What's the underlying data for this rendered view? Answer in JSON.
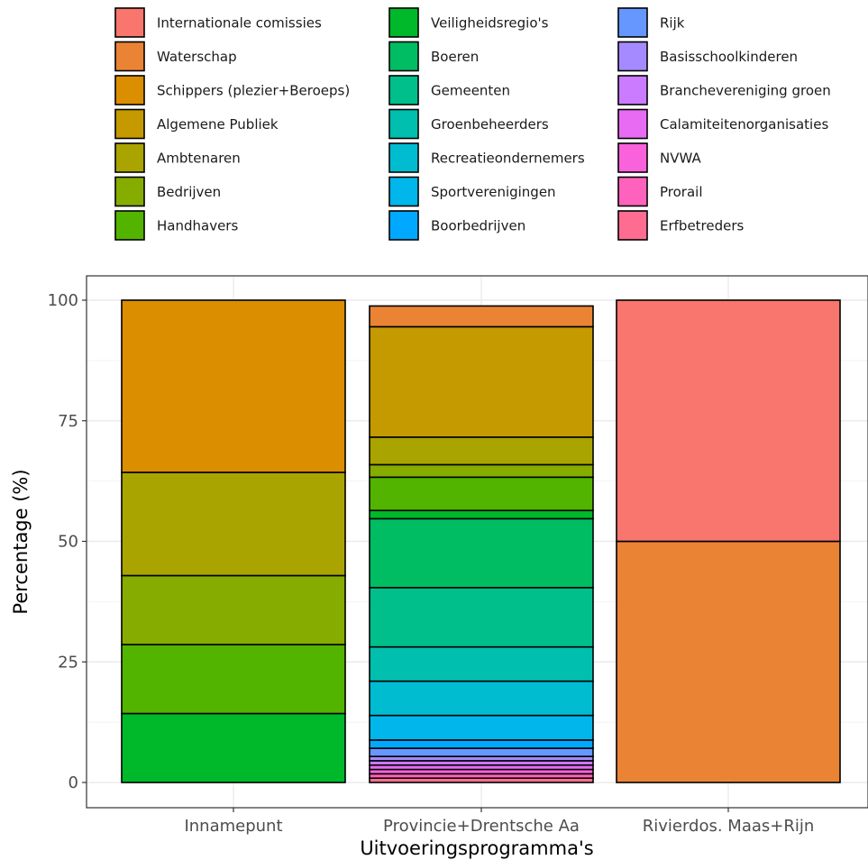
{
  "chart_data": {
    "type": "bar",
    "stacked": true,
    "xlabel": "Uitvoeringsprogramma's",
    "ylabel": "Percentage (%)",
    "ylim": [
      0,
      100
    ],
    "yticks": [
      0,
      25,
      50,
      75,
      100
    ],
    "grid": true,
    "legend_position": "top",
    "categories": [
      "Innamepunt",
      "Provincie+Drentsche Aa",
      "Rivierdos. Maas+Rijn"
    ],
    "series": [
      {
        "name": "Internationale comissies",
        "color": "#F8766D",
        "values": [
          0,
          0,
          50
        ]
      },
      {
        "name": "Waterschap",
        "color": "#EB8335",
        "values": [
          0,
          4.3,
          50
        ]
      },
      {
        "name": "Schippers (plezier+Beroeps)",
        "color": "#DB8E00",
        "values": [
          35.7,
          0,
          0
        ]
      },
      {
        "name": "Algemene Publiek",
        "color": "#C49A00",
        "values": [
          0,
          22.9,
          0
        ]
      },
      {
        "name": "Ambtenaren",
        "color": "#A9A400",
        "values": [
          21.4,
          5.7,
          0
        ]
      },
      {
        "name": "Bedrijven",
        "color": "#86AC00",
        "values": [
          14.3,
          2.6,
          0
        ]
      },
      {
        "name": "Handhavers",
        "color": "#53B400",
        "values": [
          14.3,
          6.9,
          0
        ]
      },
      {
        "name": "Veiligheidsregio's",
        "color": "#00B92A",
        "values": [
          14.3,
          1.7,
          0
        ]
      },
      {
        "name": "Boeren",
        "color": "#00BC63",
        "values": [
          0,
          14.3,
          0
        ]
      },
      {
        "name": "Gemeenten",
        "color": "#00BF8B",
        "values": [
          0,
          12.3,
          0
        ]
      },
      {
        "name": "Groenbeheerders",
        "color": "#00BFAE",
        "values": [
          0,
          7.1,
          0
        ]
      },
      {
        "name": "Recreatieondernemers",
        "color": "#00BCD1",
        "values": [
          0,
          7.1,
          0
        ]
      },
      {
        "name": "Sportverenigingen",
        "color": "#00B6EB",
        "values": [
          0,
          5.1,
          0
        ]
      },
      {
        "name": "Boorbedrijven",
        "color": "#00A9FF",
        "values": [
          0,
          1.7,
          0
        ]
      },
      {
        "name": "Rijk",
        "color": "#6597FF",
        "values": [
          0,
          1.7,
          0
        ]
      },
      {
        "name": "Basisschoolkinderen",
        "color": "#A58AFF",
        "values": [
          0,
          0.9,
          0
        ]
      },
      {
        "name": "Branchevereniging groen",
        "color": "#CB7BFF",
        "values": [
          0,
          0.9,
          0
        ]
      },
      {
        "name": "Calamiteitenorganisaties",
        "color": "#E86BF3",
        "values": [
          0,
          0.9,
          0
        ]
      },
      {
        "name": "NVWA",
        "color": "#FA62DB",
        "values": [
          0,
          0.9,
          0
        ]
      },
      {
        "name": "Prorail",
        "color": "#FF62BC",
        "values": [
          0,
          0.9,
          0
        ]
      },
      {
        "name": "Erfbetreders",
        "color": "#FF6C91",
        "values": [
          0,
          0.9,
          0
        ]
      }
    ]
  }
}
